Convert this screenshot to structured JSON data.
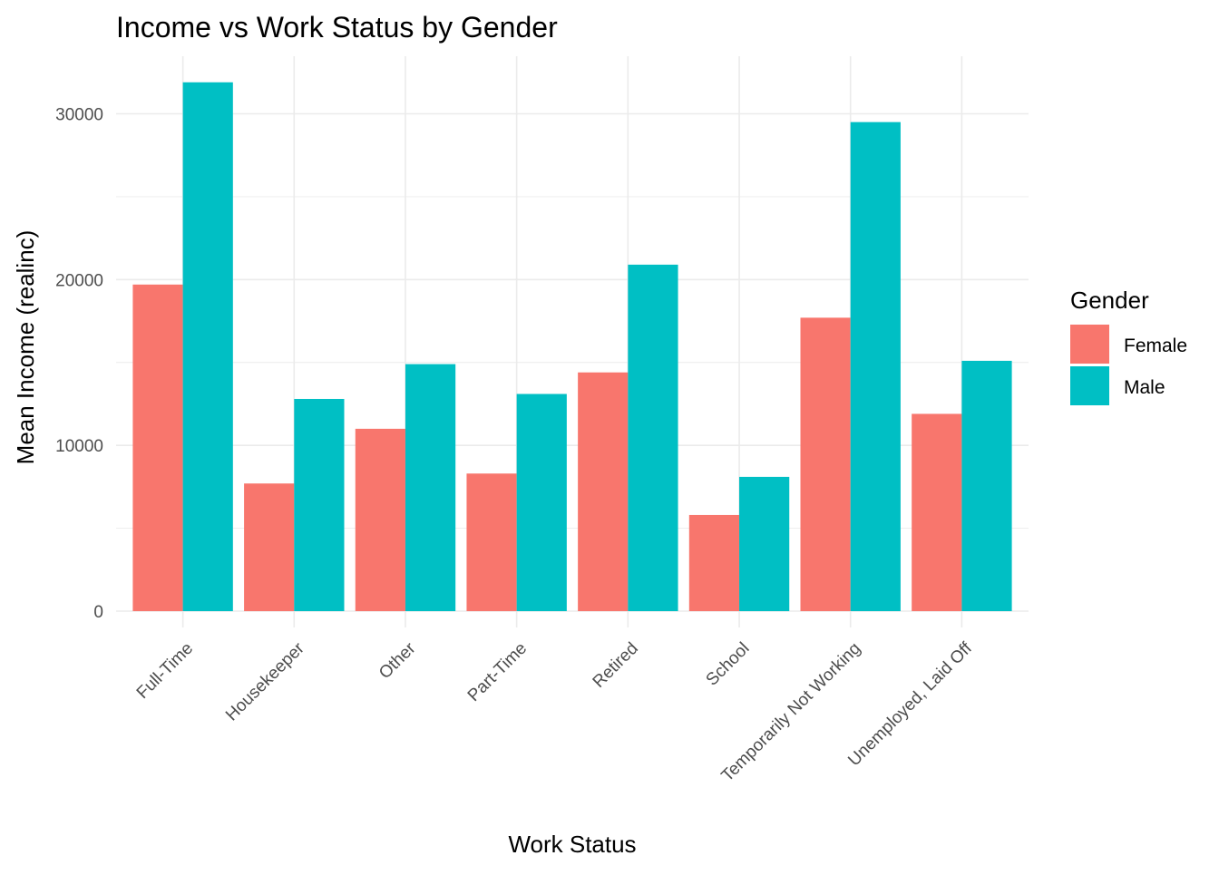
{
  "chart_data": {
    "type": "bar",
    "title": "Income vs Work Status by Gender",
    "xlabel": "Work Status",
    "ylabel": "Mean Income (realinc)",
    "categories": [
      "Full-Time",
      "Housekeeper",
      "Other",
      "Part-Time",
      "Retired",
      "School",
      "Temporarily Not Working",
      "Unemployed, Laid Off"
    ],
    "series": [
      {
        "name": "Female",
        "color": "#F8766D",
        "values": [
          19700,
          7700,
          11000,
          8300,
          14400,
          5800,
          17700,
          11900
        ]
      },
      {
        "name": "Male",
        "color": "#00BFC4",
        "values": [
          31900,
          12800,
          14900,
          13100,
          20900,
          8100,
          29500,
          15100
        ]
      }
    ],
    "ylim": [
      0,
      33500
    ],
    "y_ticks": [
      0,
      10000,
      20000,
      30000
    ],
    "y_tick_labels": [
      "0",
      "10000",
      "20000",
      "30000"
    ],
    "grid": true,
    "legend": {
      "title": "Gender",
      "position": "right"
    }
  }
}
